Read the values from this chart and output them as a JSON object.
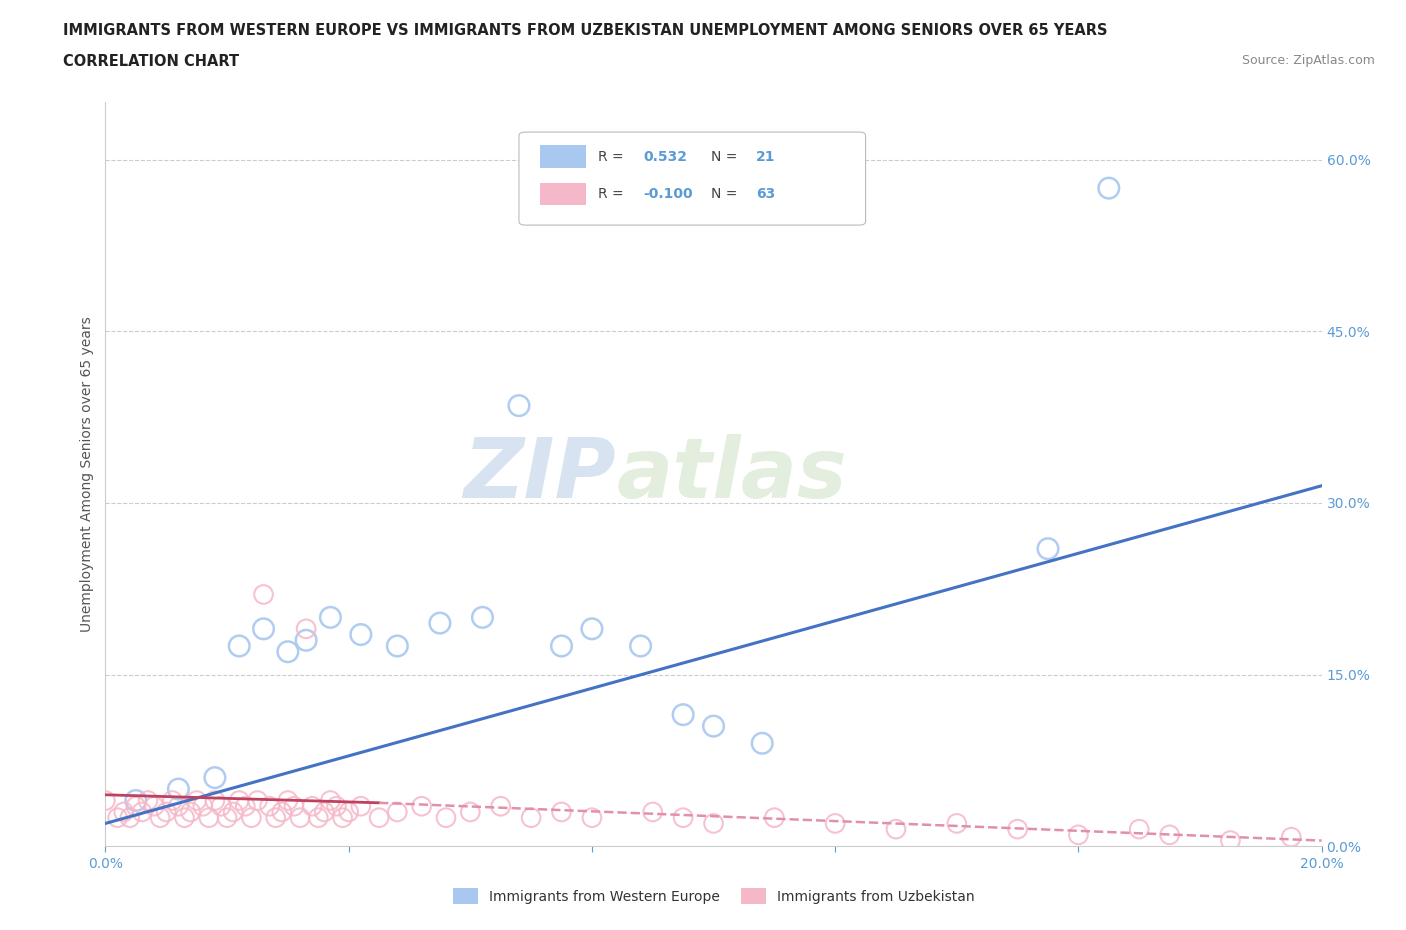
{
  "title_line1": "IMMIGRANTS FROM WESTERN EUROPE VS IMMIGRANTS FROM UZBEKISTAN UNEMPLOYMENT AMONG SENIORS OVER 65 YEARS",
  "title_line2": "CORRELATION CHART",
  "source_text": "Source: ZipAtlas.com",
  "ylabel": "Unemployment Among Seniors over 65 years",
  "xlim": [
    0.0,
    0.2
  ],
  "ylim": [
    0.0,
    0.65
  ],
  "yticks": [
    0.0,
    0.15,
    0.3,
    0.45,
    0.6
  ],
  "ytick_labels": [
    "0.0%",
    "15.0%",
    "30.0%",
    "45.0%",
    "60.0%"
  ],
  "xticks": [
    0.0,
    0.04,
    0.08,
    0.12,
    0.16,
    0.2
  ],
  "xtick_labels": [
    "0.0%",
    "",
    "",
    "",
    "",
    "20.0%"
  ],
  "r_blue": 0.532,
  "n_blue": 21,
  "r_pink": -0.1,
  "n_pink": 63,
  "blue_color": "#a8c8f0",
  "pink_color": "#f5b8c8",
  "line_blue_color": "#4472c4",
  "line_pink_color": "#c04060",
  "line_pink_dash_color": "#e090a8",
  "watermark_zip": "ZIP",
  "watermark_atlas": "atlas",
  "watermark_color": "#d8e4f0",
  "axis_color": "#5b9bd5",
  "blue_x": [
    0.005,
    0.012,
    0.018,
    0.022,
    0.026,
    0.03,
    0.033,
    0.037,
    0.042,
    0.048,
    0.055,
    0.062,
    0.068,
    0.075,
    0.08,
    0.088,
    0.095,
    0.1,
    0.108,
    0.155,
    0.165
  ],
  "blue_y": [
    0.04,
    0.05,
    0.06,
    0.175,
    0.19,
    0.17,
    0.18,
    0.2,
    0.185,
    0.175,
    0.195,
    0.2,
    0.385,
    0.175,
    0.19,
    0.175,
    0.115,
    0.105,
    0.09,
    0.26,
    0.575
  ],
  "pink_x": [
    0.0,
    0.002,
    0.003,
    0.004,
    0.005,
    0.006,
    0.007,
    0.008,
    0.009,
    0.01,
    0.011,
    0.012,
    0.013,
    0.014,
    0.015,
    0.016,
    0.017,
    0.018,
    0.019,
    0.02,
    0.021,
    0.022,
    0.023,
    0.024,
    0.025,
    0.026,
    0.027,
    0.028,
    0.029,
    0.03,
    0.031,
    0.032,
    0.033,
    0.034,
    0.035,
    0.036,
    0.037,
    0.038,
    0.039,
    0.04,
    0.042,
    0.045,
    0.048,
    0.052,
    0.056,
    0.06,
    0.065,
    0.07,
    0.075,
    0.08,
    0.09,
    0.095,
    0.1,
    0.11,
    0.12,
    0.13,
    0.14,
    0.15,
    0.16,
    0.17,
    0.175,
    0.185,
    0.195
  ],
  "pink_y": [
    0.04,
    0.025,
    0.03,
    0.025,
    0.035,
    0.03,
    0.04,
    0.035,
    0.025,
    0.03,
    0.04,
    0.035,
    0.025,
    0.03,
    0.04,
    0.035,
    0.025,
    0.04,
    0.035,
    0.025,
    0.03,
    0.04,
    0.035,
    0.025,
    0.04,
    0.22,
    0.035,
    0.025,
    0.03,
    0.04,
    0.035,
    0.025,
    0.19,
    0.035,
    0.025,
    0.03,
    0.04,
    0.035,
    0.025,
    0.03,
    0.035,
    0.025,
    0.03,
    0.035,
    0.025,
    0.03,
    0.035,
    0.025,
    0.03,
    0.025,
    0.03,
    0.025,
    0.02,
    0.025,
    0.02,
    0.015,
    0.02,
    0.015,
    0.01,
    0.015,
    0.01,
    0.005,
    0.008
  ],
  "blue_line_x0": 0.0,
  "blue_line_y0": 0.02,
  "blue_line_x1": 0.2,
  "blue_line_y1": 0.315,
  "pink_line_solid_x0": 0.0,
  "pink_line_solid_y0": 0.045,
  "pink_line_solid_x1": 0.045,
  "pink_line_solid_y1": 0.038,
  "pink_line_dash_x0": 0.045,
  "pink_line_dash_y0": 0.038,
  "pink_line_dash_x1": 0.2,
  "pink_line_dash_y1": 0.005
}
